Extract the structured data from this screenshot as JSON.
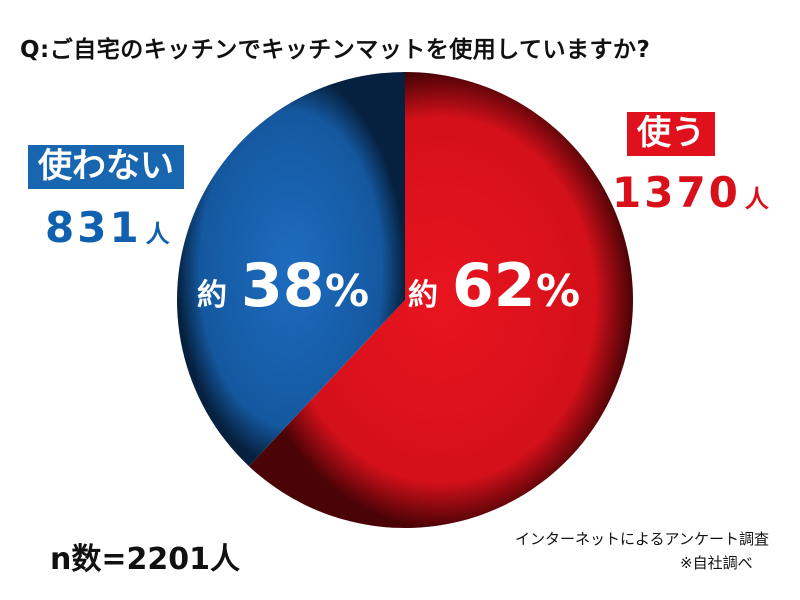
{
  "title": "Q:ご自宅のキッチンでキッチンマットを使用していますか?",
  "chart_data": {
    "type": "pie",
    "slices": [
      {
        "label": "使う",
        "count": "1370",
        "unit": "人",
        "approx_prefix": "約",
        "percent": 62,
        "percent_text": "62",
        "percent_sign": "%",
        "color": "#d8111b"
      },
      {
        "label": "使わない",
        "count": "831",
        "unit": "人",
        "approx_prefix": "約",
        "percent": 38,
        "percent_text": "38",
        "percent_sign": "%",
        "color": "#1658a8"
      }
    ],
    "total_label": "n数=2201人"
  },
  "footer": {
    "source": "インターネットによるアンケート調査",
    "note": "※自社調べ"
  },
  "colors": {
    "use_label_bg": "#e0101c",
    "nouse_label_bg": "#1865b0",
    "use_text": "#d8101a",
    "nouse_text": "#1060b0"
  }
}
